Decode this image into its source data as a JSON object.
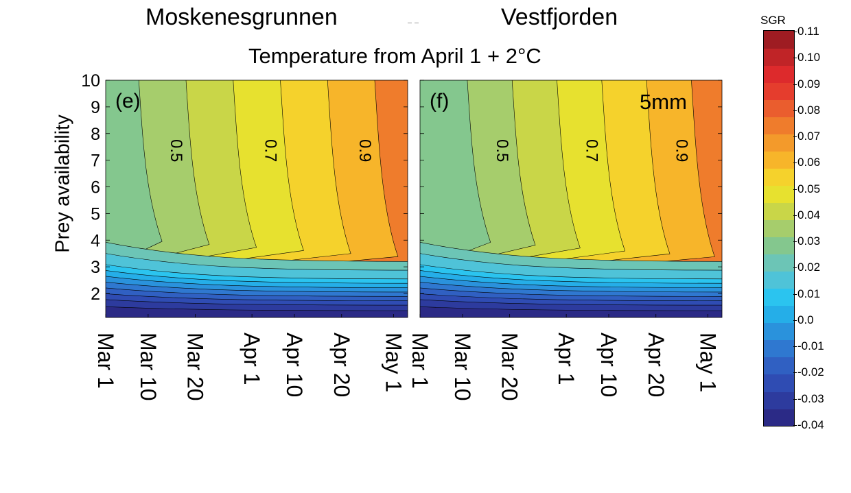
{
  "titles": {
    "left_panel": "Moskenesgrunnen",
    "right_panel": "Vestfjorden",
    "suptitle": "Temperature from April 1 + 2°C",
    "ylabel": "Prey availability"
  },
  "colorbar": {
    "title": "SGR",
    "labels": [
      "0.11",
      "0.10",
      "0.09",
      "0.08",
      "0.07",
      "0.06",
      "0.05",
      "0.04",
      "0.03",
      "0.02",
      "0.01",
      "0.0",
      "-0.01",
      "-0.02",
      "-0.03",
      "-0.04"
    ],
    "colors": [
      "#2b2a86",
      "#2d3b9e",
      "#2f4cb3",
      "#3060c2",
      "#2f78d0",
      "#2a92dc",
      "#25aee8",
      "#2bc4ef",
      "#4fc3d8",
      "#6cc5b6",
      "#84c78e",
      "#a6cd6c",
      "#c9d648",
      "#e7e12f",
      "#f5d22c",
      "#f7b52a",
      "#f39a2b",
      "#ef7c2c",
      "#ea5d2e",
      "#e53d2d",
      "#dd2a2c",
      "#c02427",
      "#9e1c22"
    ]
  },
  "chart_data": [
    {
      "type": "heatmap",
      "panel_label": "(e)",
      "title": "Moskenesgrunnen",
      "annotation": "",
      "x_ticks": [
        "Mar 1",
        "Mar 10",
        "Mar 20",
        "Apr 1",
        "Apr 10",
        "Apr 20",
        "May 1"
      ],
      "y_ticks": [
        2,
        3,
        4,
        5,
        6,
        7,
        8,
        9,
        10
      ],
      "xlim": [
        "Mar 1",
        "May 4"
      ],
      "ylim": [
        1.1,
        10
      ],
      "ylabel": "Prey availability",
      "contour_labels": [
        "0.5",
        "0.7",
        "0.9"
      ],
      "bands_low": [
        "#2b2a86",
        "#2d3b9e",
        "#2f4cb3",
        "#3060c2",
        "#2f78d0",
        "#2a92dc",
        "#25aee8",
        "#2bc4ef",
        "#4fc3d8",
        "#6cc5b6"
      ],
      "bands_high": [
        "#84c78e",
        "#a6cd6c",
        "#c9d648",
        "#e7e12f",
        "#f5d22c",
        "#f7b52a",
        "#ef7c2c"
      ],
      "contour_dates": [
        "Mar 8",
        "Mar 24",
        "Apr 9",
        "May 7"
      ],
      "low_y_levels": [
        1.35,
        1.6,
        1.8,
        2.0,
        2.2,
        2.4,
        2.6,
        2.8,
        3.2,
        3.6
      ]
    },
    {
      "type": "heatmap",
      "panel_label": "(f)",
      "title": "Vestfjorden",
      "annotation": "5mm",
      "x_ticks": [
        "Mar 1",
        "Mar 10",
        "Mar 20",
        "Apr 1",
        "Apr 10",
        "Apr 20",
        "May 1"
      ],
      "y_ticks": [
        2,
        3,
        4,
        5,
        6,
        7,
        8,
        9,
        10
      ],
      "xlim": [
        "Mar 1",
        "May 4"
      ],
      "ylim": [
        1.1,
        10
      ],
      "ylabel": "",
      "contour_labels": [
        "0.5",
        "0.7",
        "0.9"
      ],
      "bands_low": [
        "#2b2a86",
        "#2d3b9e",
        "#2f4cb3",
        "#3060c2",
        "#2f78d0",
        "#2a92dc",
        "#25aee8",
        "#2bc4ef",
        "#4fc3d8",
        "#6cc5b6"
      ],
      "bands_high": [
        "#84c78e",
        "#a6cd6c",
        "#c9d648",
        "#e7e12f",
        "#f5d22c",
        "#f7b52a",
        "#ef7c2c"
      ],
      "contour_dates": [
        "Mar 11",
        "Mar 27",
        "Apr 13",
        "May 7"
      ],
      "low_y_levels": [
        1.35,
        1.6,
        1.8,
        2.0,
        2.2,
        2.4,
        2.6,
        2.8,
        3.2,
        3.6
      ]
    }
  ]
}
